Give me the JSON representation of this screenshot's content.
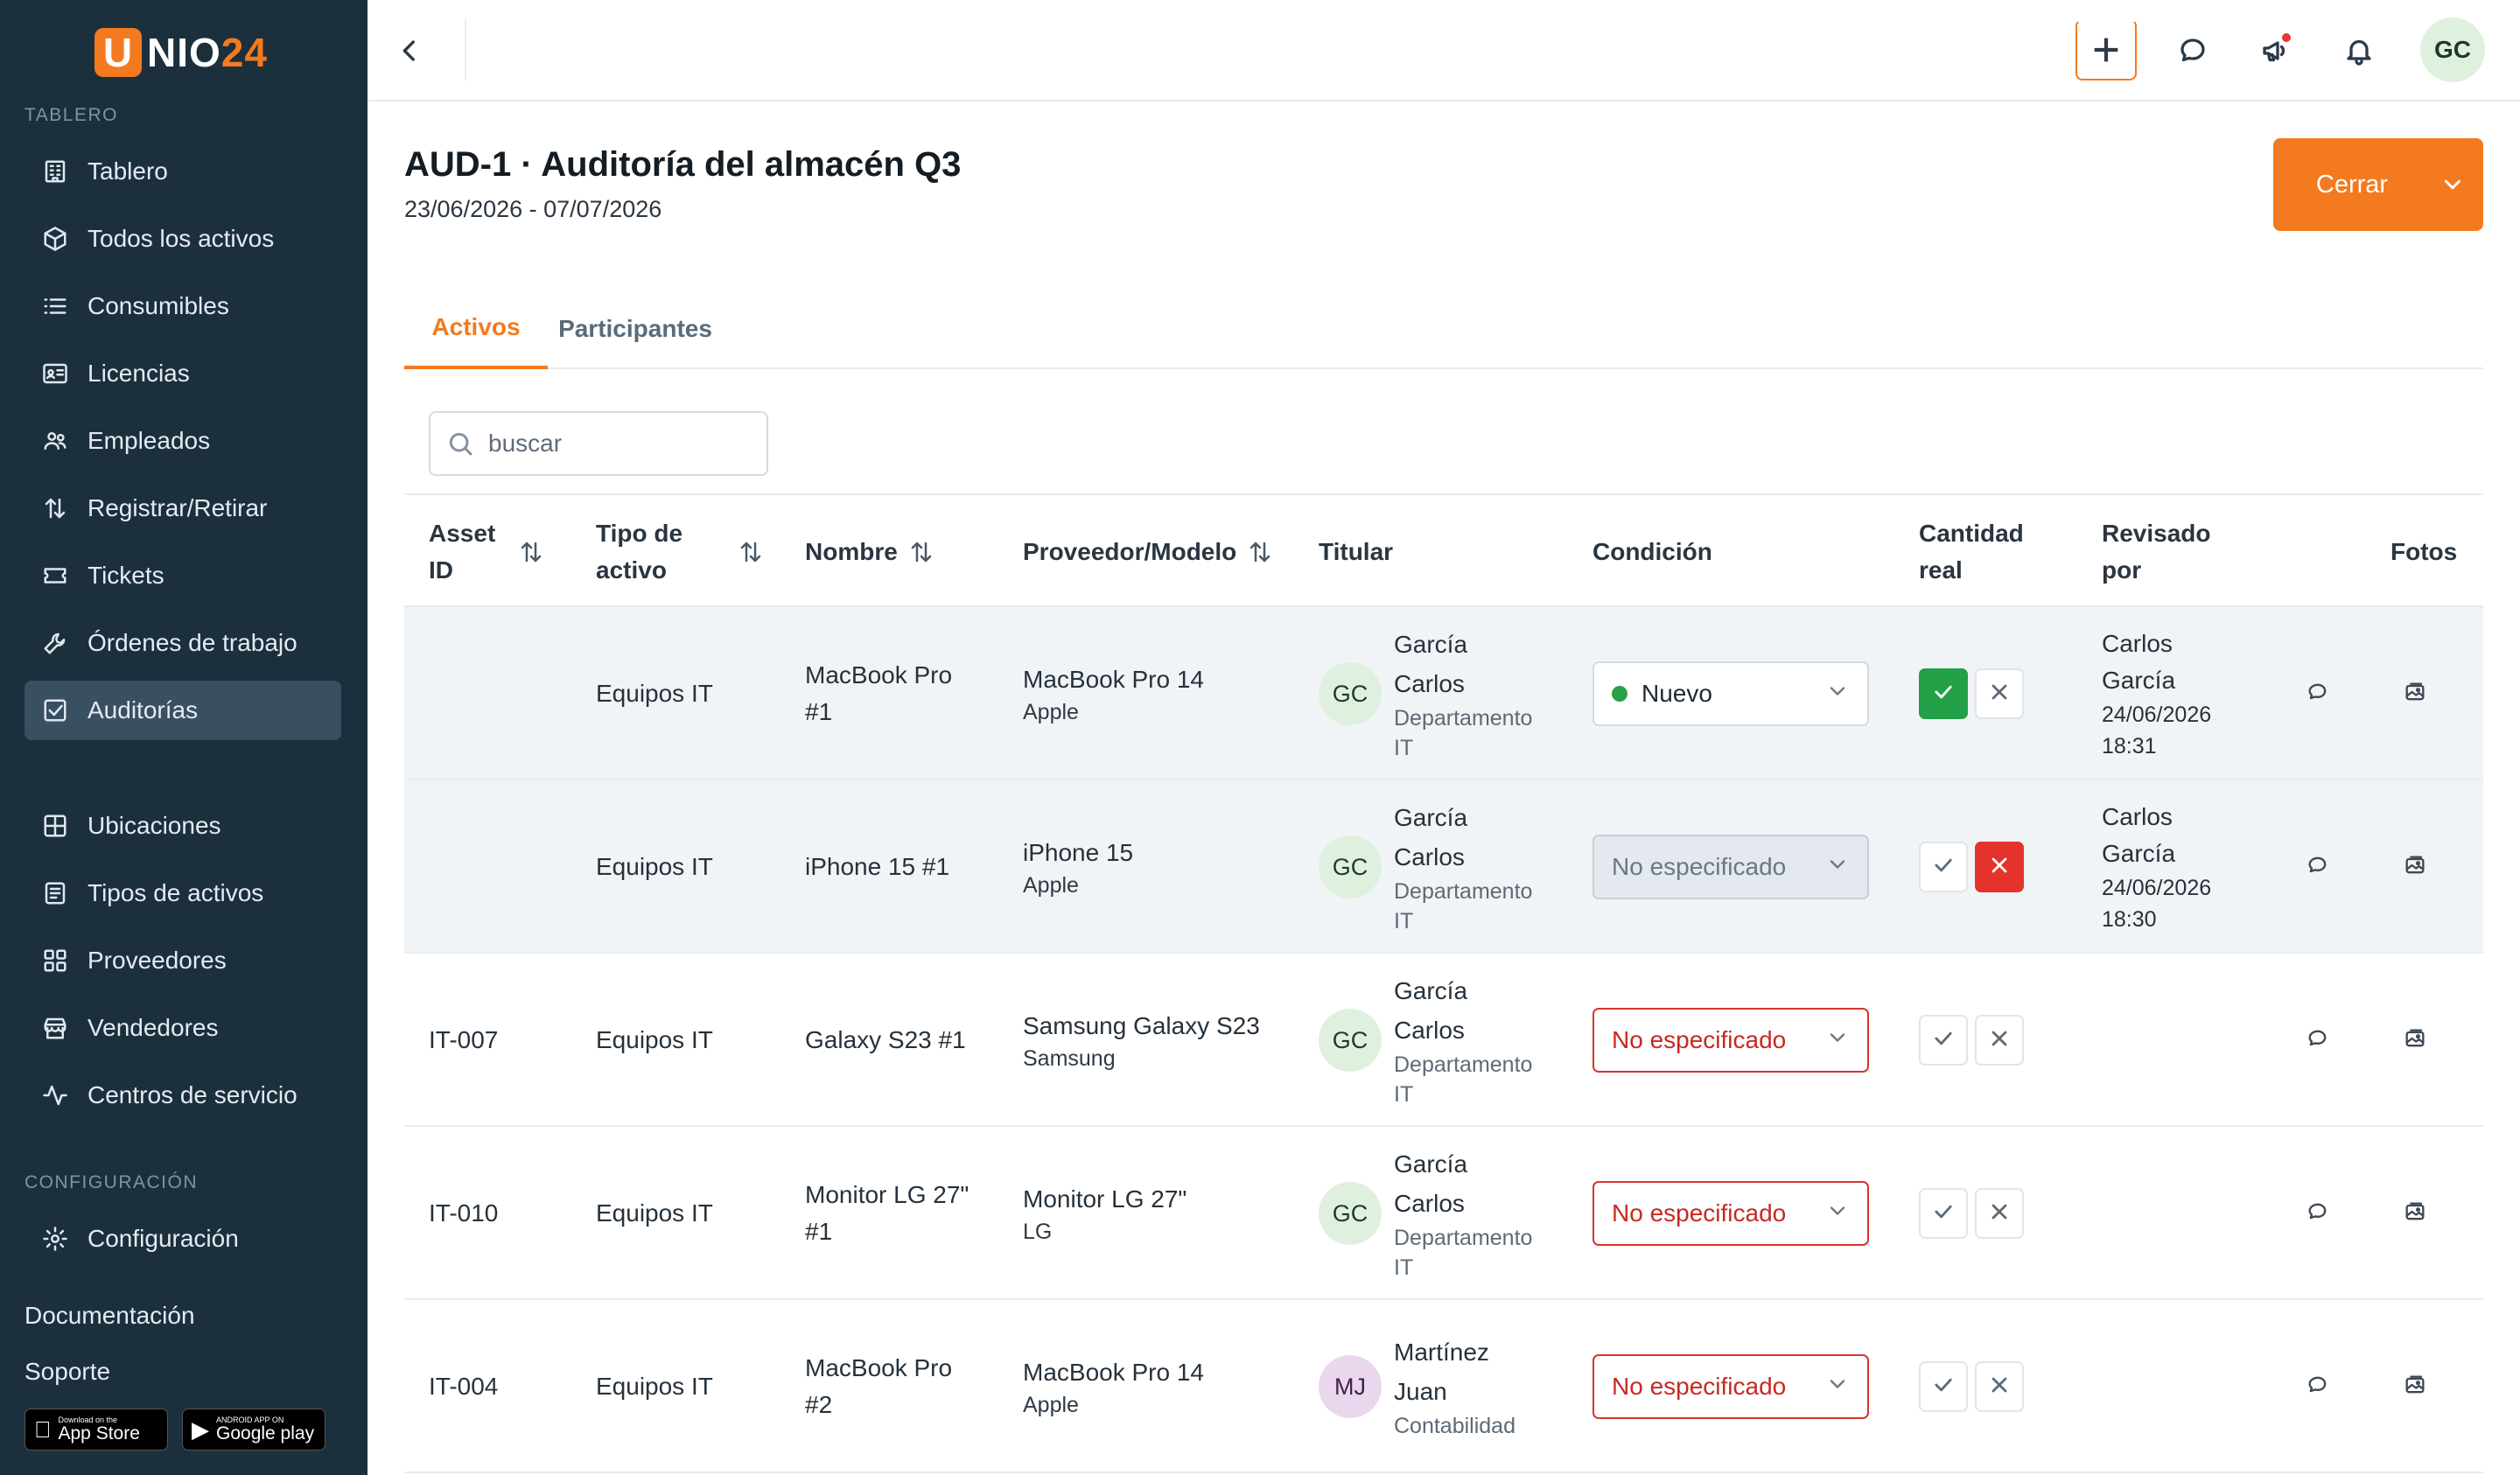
{
  "brand": {
    "u": "U",
    "nio": "NIO",
    "num": "24"
  },
  "sidebar": {
    "section_dashboard": "TABLERO",
    "section_config": "CONFIGURACIÓN",
    "items": [
      {
        "label": "Tablero",
        "icon": "building-icon"
      },
      {
        "label": "Todos los activos",
        "icon": "box-icon"
      },
      {
        "label": "Consumibles",
        "icon": "list-icon"
      },
      {
        "label": "Licencias",
        "icon": "id-card-icon"
      },
      {
        "label": "Empleados",
        "icon": "users-icon"
      },
      {
        "label": "Registrar/Retirar",
        "icon": "arrows-updown-icon"
      },
      {
        "label": "Tickets",
        "icon": "ticket-icon"
      },
      {
        "label": "Órdenes de trabajo",
        "icon": "wrench-icon"
      },
      {
        "label": "Auditorías",
        "icon": "checkbox-icon",
        "active": true
      },
      {
        "label": "Ubicaciones",
        "icon": "grid-icon"
      },
      {
        "label": "Tipos de activos",
        "icon": "document-icon"
      },
      {
        "label": "Proveedores",
        "icon": "apps-icon"
      },
      {
        "label": "Vendedores",
        "icon": "store-icon"
      },
      {
        "label": "Centros de servicio",
        "icon": "pulse-icon"
      }
    ],
    "config_item": {
      "label": "Configuración",
      "icon": "gear-icon"
    },
    "docs": "Documentación",
    "support": "Soporte",
    "app_store": {
      "small": "Download on the",
      "big": "App Store"
    },
    "google_play": {
      "small": "ANDROID APP ON",
      "big": "Google play"
    }
  },
  "topbar": {
    "user_initials": "GC",
    "icons": [
      "back-icon",
      "plus-icon",
      "chat-icon",
      "megaphone-icon",
      "bell-icon"
    ]
  },
  "header": {
    "title": "AUD-1 · Auditoría del almacén Q3",
    "dates": "23/06/2026 - 07/07/2026",
    "close_label": "Cerrar"
  },
  "tabs": [
    {
      "label": "Activos",
      "active": true
    },
    {
      "label": "Participantes",
      "active": false
    }
  ],
  "search": {
    "placeholder": "buscar",
    "value": ""
  },
  "table": {
    "columns": {
      "asset_id": "Asset ID",
      "type": "Tipo de activo",
      "name": "Nombre",
      "vendor": "Proveedor/Modelo",
      "holder": "Titular",
      "condition": "Condición",
      "qty": "Cantidad real",
      "reviewed": "Revisado por",
      "photos": "Fotos"
    },
    "rows": [
      {
        "asset_id": "",
        "type": "Equipos IT",
        "name": "MacBook Pro #1",
        "model": "MacBook Pro 14",
        "vendor": "Apple",
        "holder_initials": "GC",
        "holder_name": "García Carlos",
        "holder_dept": "Departamento IT",
        "condition": "Nuevo",
        "qty_state": "ok",
        "reviewer": "Carlos García",
        "reviewed_at": "24/06/2026 18:31",
        "highlight": true
      },
      {
        "asset_id": "",
        "type": "Equipos IT",
        "name": "iPhone 15 #1",
        "model": "iPhone 15",
        "vendor": "Apple",
        "holder_initials": "GC",
        "holder_name": "García Carlos",
        "holder_dept": "Departamento IT",
        "condition": "No especificado",
        "qty_state": "no",
        "reviewer": "Carlos García",
        "reviewed_at": "24/06/2026 18:30",
        "highlight": true
      },
      {
        "asset_id": "IT-007",
        "type": "Equipos IT",
        "name": "Galaxy S23 #1",
        "model": "Samsung Galaxy S23",
        "vendor": "Samsung",
        "holder_initials": "GC",
        "holder_name": "García Carlos",
        "holder_dept": "Departamento IT",
        "condition": "No especificado",
        "qty_state": "none",
        "reviewer": "",
        "reviewed_at": "",
        "highlight": false
      },
      {
        "asset_id": "IT-010",
        "type": "Equipos IT",
        "name": "Monitor LG 27\" #1",
        "model": "Monitor LG 27\"",
        "vendor": "LG",
        "holder_initials": "GC",
        "holder_name": "García Carlos",
        "holder_dept": "Departamento IT",
        "condition": "No especificado",
        "qty_state": "none",
        "reviewer": "",
        "reviewed_at": "",
        "highlight": false
      },
      {
        "asset_id": "IT-004",
        "type": "Equipos IT",
        "name": "MacBook Pro #2",
        "model": "MacBook Pro 14",
        "vendor": "Apple",
        "holder_initials": "MJ",
        "holder_name": "Martínez Juan",
        "holder_dept": "Contabilidad",
        "condition": "No especificado",
        "qty_state": "none",
        "reviewer": "",
        "reviewed_at": "",
        "highlight": false
      }
    ]
  },
  "colors": {
    "accent": "#f47a1f",
    "sidebar": "#1c2f3d",
    "ok": "#23a047",
    "danger": "#e4332c"
  }
}
